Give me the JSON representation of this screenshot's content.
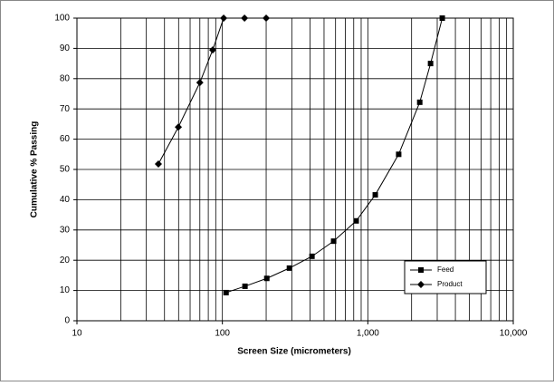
{
  "chart_data": {
    "type": "line",
    "x_label": "Screen Size (micrometers)",
    "y_label": "Cumulative % Passing",
    "xlog": true,
    "xlim": [
      10,
      10000
    ],
    "xticks": [
      10,
      100,
      {
        "value": 1000,
        "label": "1,000"
      },
      {
        "value": 10000,
        "label": "10,000"
      }
    ],
    "ylim": [
      0,
      100
    ],
    "yticks": [
      0,
      10,
      20,
      30,
      40,
      50,
      60,
      70,
      80,
      90,
      100
    ],
    "grid": true,
    "minor_grid": true,
    "legend": "lower right",
    "series": [
      {
        "name": "Feed",
        "color": "#000000",
        "marker": "square",
        "x": [
          106,
          143,
          202,
          289,
          413,
          582,
          832,
          1125,
          1630,
          2275,
          2700,
          3250
        ],
        "values": [
          9.3,
          11.4,
          14,
          17.4,
          21.3,
          26.3,
          33,
          41.6,
          55,
          72.2,
          85,
          100
        ]
      },
      {
        "name": "Product",
        "color": "#000000",
        "marker": "diamond",
        "x": [
          36.3,
          49.8,
          70,
          85.8,
          102,
          142,
          200
        ],
        "values": [
          51.8,
          64,
          78.7,
          89.5,
          100,
          100,
          100
        ]
      }
    ]
  }
}
